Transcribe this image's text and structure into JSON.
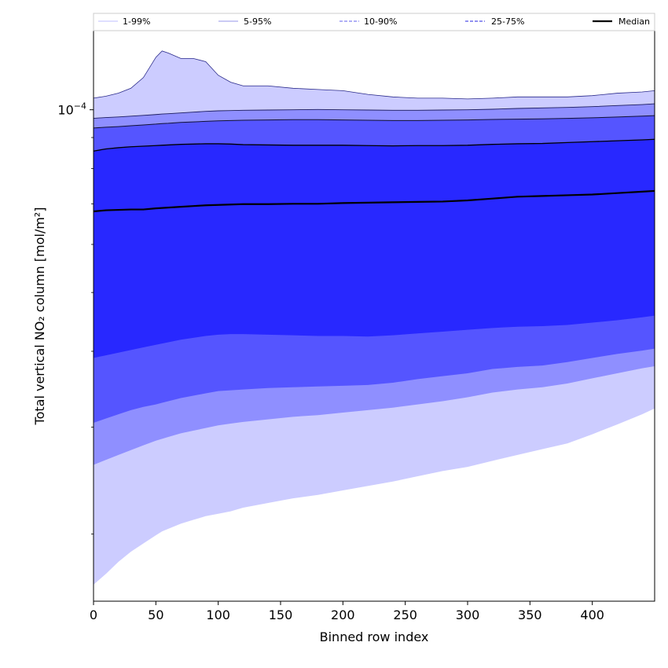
{
  "chart_data": {
    "type": "area",
    "xlabel": "Binned row index",
    "ylabel": "Total vertical NO₂ column [mol/m²]",
    "xlim": [
      0,
      450
    ],
    "xticks": [
      0,
      50,
      100,
      150,
      200,
      250,
      300,
      350,
      400
    ],
    "xtick_labels": [
      "0",
      "50",
      "100",
      "150",
      "200",
      "250",
      "300",
      "350",
      "400"
    ],
    "yscale": "log",
    "ylim": [
      1.55e-05,
      0.000135
    ],
    "ymajor_tick": {
      "value": 0.0001,
      "label_base": "10",
      "label_exp": "−4"
    },
    "yminor_ticks": [
      2e-05,
      3e-05,
      4e-05,
      5e-05,
      6e-05,
      7e-05,
      8e-05,
      9e-05
    ],
    "x": [
      0,
      10,
      20,
      30,
      40,
      50,
      55,
      60,
      70,
      80,
      90,
      100,
      110,
      120,
      140,
      160,
      180,
      200,
      220,
      240,
      260,
      280,
      300,
      320,
      340,
      360,
      380,
      400,
      420,
      440,
      450
    ],
    "series": [
      {
        "name": "p1",
        "values": [
          1.65e-05,
          1.72e-05,
          1.8e-05,
          1.87e-05,
          1.93e-05,
          1.99e-05,
          2.02e-05,
          2.04e-05,
          2.08e-05,
          2.11e-05,
          2.14e-05,
          2.16e-05,
          2.18e-05,
          2.21e-05,
          2.25e-05,
          2.29e-05,
          2.32e-05,
          2.36e-05,
          2.4e-05,
          2.44e-05,
          2.49e-05,
          2.54e-05,
          2.58e-05,
          2.64e-05,
          2.7e-05,
          2.76e-05,
          2.82e-05,
          2.92e-05,
          3.03e-05,
          3.15e-05,
          3.22e-05
        ]
      },
      {
        "name": "p5",
        "values": [
          2.6e-05,
          2.65e-05,
          2.7e-05,
          2.75e-05,
          2.8e-05,
          2.85e-05,
          2.87e-05,
          2.89e-05,
          2.93e-05,
          2.96e-05,
          2.99e-05,
          3.02e-05,
          3.04e-05,
          3.06e-05,
          3.09e-05,
          3.12e-05,
          3.14e-05,
          3.17e-05,
          3.2e-05,
          3.23e-05,
          3.27e-05,
          3.31e-05,
          3.36e-05,
          3.42e-05,
          3.46e-05,
          3.49e-05,
          3.54e-05,
          3.61e-05,
          3.68e-05,
          3.75e-05,
          3.78e-05
        ]
      },
      {
        "name": "p10",
        "values": [
          3.05e-05,
          3.1e-05,
          3.15e-05,
          3.2e-05,
          3.24e-05,
          3.27e-05,
          3.29e-05,
          3.31e-05,
          3.35e-05,
          3.38e-05,
          3.41e-05,
          3.44e-05,
          3.45e-05,
          3.46e-05,
          3.48e-05,
          3.49e-05,
          3.5e-05,
          3.51e-05,
          3.52e-05,
          3.55e-05,
          3.6e-05,
          3.64e-05,
          3.68e-05,
          3.74e-05,
          3.77e-05,
          3.79e-05,
          3.84e-05,
          3.9e-05,
          3.96e-05,
          4.01e-05,
          4.04e-05
        ]
      },
      {
        "name": "p25",
        "values": [
          3.9e-05,
          3.94e-05,
          3.98e-05,
          4.02e-05,
          4.06e-05,
          4.1e-05,
          4.12e-05,
          4.14e-05,
          4.18e-05,
          4.21e-05,
          4.24e-05,
          4.26e-05,
          4.27e-05,
          4.27e-05,
          4.26e-05,
          4.25e-05,
          4.24e-05,
          4.24e-05,
          4.23e-05,
          4.25e-05,
          4.28e-05,
          4.31e-05,
          4.34e-05,
          4.37e-05,
          4.39e-05,
          4.4e-05,
          4.42e-05,
          4.46e-05,
          4.5e-05,
          4.55e-05,
          4.58e-05
        ]
      },
      {
        "name": "p50",
        "values": [
          6.8e-05,
          6.83e-05,
          6.84e-05,
          6.85e-05,
          6.85e-05,
          6.88e-05,
          6.89e-05,
          6.9e-05,
          6.92e-05,
          6.94e-05,
          6.96e-05,
          6.97e-05,
          6.98e-05,
          6.99e-05,
          6.99e-05,
          7e-05,
          7e-05,
          7.02e-05,
          7.03e-05,
          7.04e-05,
          7.05e-05,
          7.06e-05,
          7.09e-05,
          7.14e-05,
          7.19e-05,
          7.21e-05,
          7.23e-05,
          7.25e-05,
          7.29e-05,
          7.33e-05,
          7.35e-05
        ]
      },
      {
        "name": "p75",
        "values": [
          8.55e-05,
          8.62e-05,
          8.66e-05,
          8.69e-05,
          8.71e-05,
          8.73e-05,
          8.74e-05,
          8.75e-05,
          8.77e-05,
          8.78e-05,
          8.79e-05,
          8.79e-05,
          8.78e-05,
          8.76e-05,
          8.75e-05,
          8.74e-05,
          8.74e-05,
          8.74e-05,
          8.73e-05,
          8.72e-05,
          8.73e-05,
          8.73e-05,
          8.74e-05,
          8.77e-05,
          8.79e-05,
          8.8e-05,
          8.83e-05,
          8.86e-05,
          8.89e-05,
          8.92e-05,
          8.94e-05
        ]
      },
      {
        "name": "p90",
        "values": [
          9.33e-05,
          9.36e-05,
          9.38e-05,
          9.41e-05,
          9.44e-05,
          9.47e-05,
          9.49e-05,
          9.5e-05,
          9.53e-05,
          9.55e-05,
          9.57e-05,
          9.59e-05,
          9.6e-05,
          9.61e-05,
          9.62e-05,
          9.63e-05,
          9.63e-05,
          9.62e-05,
          9.61e-05,
          9.6e-05,
          9.6e-05,
          9.61e-05,
          9.62e-05,
          9.64e-05,
          9.65e-05,
          9.66e-05,
          9.68e-05,
          9.7e-05,
          9.73e-05,
          9.76e-05,
          9.78e-05
        ]
      },
      {
        "name": "p95",
        "values": [
          9.68e-05,
          9.71e-05,
          9.73e-05,
          9.76e-05,
          9.79e-05,
          9.82e-05,
          9.84e-05,
          9.85e-05,
          9.88e-05,
          9.91e-05,
          9.94e-05,
          9.96e-05,
          9.97e-05,
          9.98e-05,
          9.99e-05,
          0.0001,
          0.0001001,
          0.0001,
          9.99e-05,
          9.98e-05,
          9.98e-05,
          9.99e-05,
          0.0001,
          0.0001002,
          0.0001005,
          0.0001007,
          0.0001009,
          0.0001012,
          0.0001016,
          0.000102,
          0.0001023
        ]
      },
      {
        "name": "p99",
        "values": [
          0.0001045,
          0.0001053,
          0.0001065,
          0.0001085,
          0.000113,
          0.000122,
          0.000125,
          0.000124,
          0.0001215,
          0.0001215,
          0.00012,
          0.000114,
          0.000111,
          0.0001095,
          0.0001095,
          0.0001085,
          0.000108,
          0.0001075,
          0.000106,
          0.000105,
          0.0001045,
          0.0001045,
          0.0001042,
          0.0001045,
          0.000105,
          0.000105,
          0.000105,
          0.0001055,
          0.0001065,
          0.000107,
          0.0001075
        ]
      }
    ],
    "bands": [
      {
        "lower": "p1",
        "upper": "p99",
        "color": "#ccccff"
      },
      {
        "lower": "p5",
        "upper": "p95",
        "color": "#8f8fff"
      },
      {
        "lower": "p10",
        "upper": "p90",
        "color": "#5555ff"
      },
      {
        "lower": "p25",
        "upper": "p75",
        "color": "#2828ff"
      }
    ],
    "outlines": [
      {
        "series": "p99",
        "color": "#2a2a8a",
        "width": 0.8
      },
      {
        "series": "p95",
        "color": "#1c1c5c",
        "width": 0.9
      },
      {
        "series": "p90",
        "color": "#111133",
        "width": 1.0
      },
      {
        "series": "p75",
        "color": "#000000",
        "width": 1.3
      },
      {
        "series": "p50",
        "color": "#000000",
        "width": 2.2
      }
    ],
    "legend": {
      "placement": "top, outside, single row",
      "entries": [
        {
          "label": "1-99%",
          "color": "#ccccff",
          "dash": "solid"
        },
        {
          "label": "5-95%",
          "color": "#aaaaee",
          "dash": "solid"
        },
        {
          "label": "10-90%",
          "color": "#8080f0",
          "dash": "dashed"
        },
        {
          "label": "25-75%",
          "color": "#5050e8",
          "dash": "dashed"
        },
        {
          "label": "Median",
          "color": "#000000",
          "dash": "solid"
        }
      ]
    }
  }
}
